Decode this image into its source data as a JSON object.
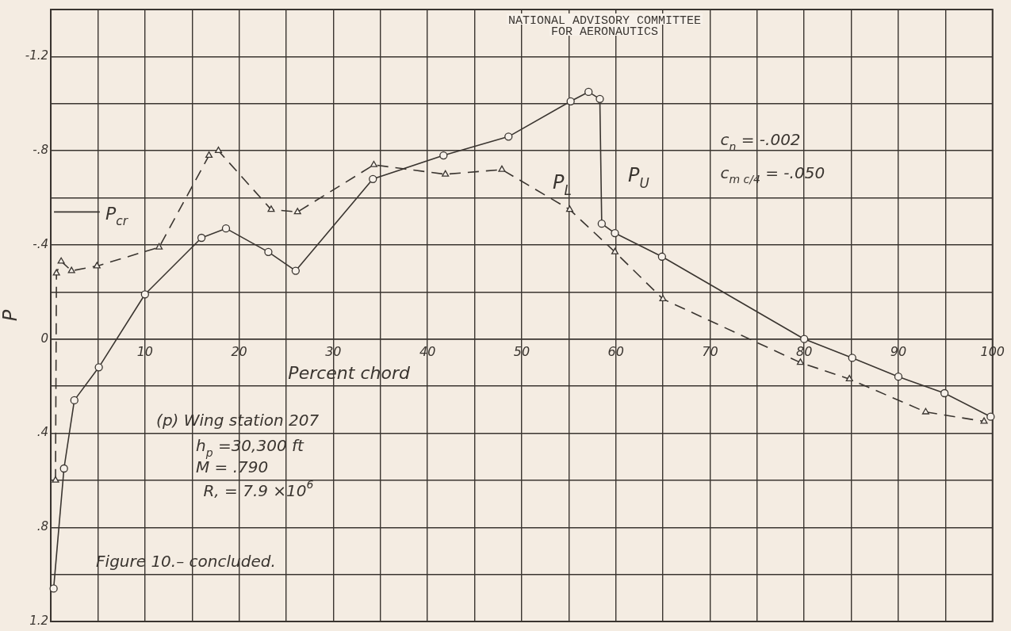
{
  "chart_data": {
    "type": "line",
    "title": "NATIONAL ADVISORY COMMITTEE\nFOR AERONAUTICS",
    "xlabel": "Percent chord",
    "ylabel": "P",
    "xlim": [
      0,
      100
    ],
    "xticks": [
      {
        "value": 0,
        "label": null
      },
      {
        "value": 5,
        "label": null
      },
      10,
      {
        "value": 15,
        "label": null
      },
      20,
      {
        "value": 25,
        "label": null
      },
      30,
      {
        "value": 35,
        "label": null
      },
      40,
      {
        "value": 45,
        "label": null
      },
      50,
      {
        "value": 55,
        "label": null
      },
      60,
      {
        "value": 65,
        "label": null
      },
      70,
      {
        "value": 75,
        "label": null
      },
      80,
      {
        "value": 85,
        "label": null
      },
      90,
      {
        "value": 95,
        "label": null
      },
      100
    ],
    "ylim": [
      1.2,
      -1.4
    ],
    "yticks": [
      {
        "value": -1.4,
        "label": null
      },
      {
        "value": -1.2,
        "label": "-1.2"
      },
      {
        "value": -1,
        "label": null
      },
      {
        "value": -0.8,
        "label": "-.8"
      },
      {
        "value": -0.6,
        "label": null
      },
      {
        "value": -0.4,
        "label": "-.4"
      },
      {
        "value": -0.2,
        "label": null
      },
      0,
      {
        "value": 0.2,
        "label": null
      },
      {
        "value": 0.4,
        "label": ".4"
      },
      {
        "value": 0.6,
        "label": null
      },
      {
        "value": 0.8,
        "label": ".8"
      },
      {
        "value": 1,
        "label": null
      },
      {
        "value": 1.2,
        "label": "1.2"
      }
    ],
    "grid": true,
    "legend": false,
    "series": [
      {
        "name": "P$_{U}$",
        "color": "#3a3530",
        "marker": "circle",
        "line_style": "solid",
        "x": [
          0.3,
          1.4,
          2.5,
          5.1,
          10.0,
          16.0,
          18.6,
          23.1,
          26.0,
          34.2,
          41.7,
          48.6,
          55.2,
          57.1,
          58.3,
          58.5,
          59.9,
          64.9,
          80.0,
          85.1,
          90.0,
          94.9,
          99.8
        ],
        "values": [
          1.06,
          0.55,
          0.26,
          0.12,
          -0.19,
          -0.43,
          -0.47,
          -0.37,
          -0.29,
          -0.68,
          -0.78,
          -0.86,
          -1.01,
          -1.05,
          -1.02,
          -0.49,
          -0.45,
          -0.35,
          0.0,
          0.08,
          0.16,
          0.23,
          0.33
        ]
      },
      {
        "name": "P$_{L}$",
        "color": "#3a3530",
        "marker": "triangle",
        "line_style": "dashed",
        "x": [
          0.5,
          0.6,
          1.1,
          2.2,
          4.9,
          11.5,
          16.8,
          17.8,
          23.4,
          26.2,
          34.3,
          41.9,
          47.9,
          55.1,
          59.9,
          65.0,
          79.6,
          84.8,
          92.9,
          99.1
        ],
        "values": [
          0.6,
          -0.28,
          -0.33,
          -0.29,
          -0.31,
          -0.39,
          -0.78,
          -0.8,
          -0.55,
          -0.54,
          -0.74,
          -0.7,
          -0.72,
          -0.55,
          -0.37,
          -0.17,
          0.1,
          0.17,
          0.31,
          0.35
        ]
      }
    ],
    "ref_lines": [
      {
        "axis": "y",
        "value": -0.54,
        "label": "P$_{cr}$"
      }
    ],
    "annotations": [
      "c$_{n}$ = -.002",
      "c$_{m c/4}$ = -.050",
      "(p) Wing station 207",
      "h$_{p}$ =30,300 ft",
      "M = .790",
      "R, = 7.9 ×10$^{6}$",
      "Figure 10.– concluded."
    ]
  }
}
